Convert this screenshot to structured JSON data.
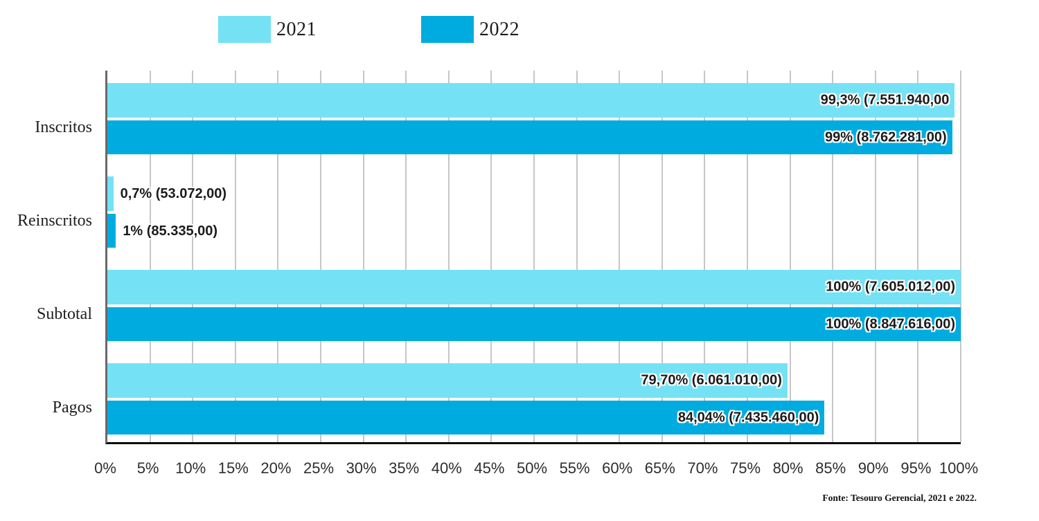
{
  "chart_data": {
    "type": "bar",
    "orientation": "horizontal",
    "categories": [
      "Inscritos",
      "Reinscritos",
      "Subtotal",
      "Pagos"
    ],
    "series": [
      {
        "name": "2021",
        "color": "#74E2F4",
        "values": [
          99.3,
          0.7,
          100,
          79.7
        ],
        "labels": [
          "99,3% (7.551.940,00",
          "0,7% (53.072,00)",
          "100% (7.605.012,00)",
          "79,70% (6.061.010,00)"
        ]
      },
      {
        "name": "2022",
        "color": "#00ACDF",
        "values": [
          99,
          1,
          100,
          84.04
        ],
        "labels": [
          "99% (8.762.281,00)",
          "1% (85.335,00)",
          "100% (8.847.616,00)",
          "84,04% (7.435.460,00)"
        ]
      }
    ],
    "x_ticks": [
      "0%",
      "5%",
      "10%",
      "15%",
      "20%",
      "25%",
      "30%",
      "35%",
      "40%",
      "45%",
      "50%",
      "55%",
      "60%",
      "65%",
      "70%",
      "75%",
      "80%",
      "85%",
      "90%",
      "95%",
      "100%"
    ],
    "xlim": [
      0,
      100
    ],
    "grid": true,
    "legend_position": "top",
    "title": "",
    "xlabel": "",
    "ylabel": ""
  },
  "legend": [
    {
      "label": "2021",
      "color": "#74E2F4"
    },
    {
      "label": "2022",
      "color": "#00ACDF"
    }
  ],
  "footer": {
    "source": "Fonte: Tesouro Gerencial, 2021 e 2022."
  },
  "colors": {
    "series_2021": "#74E2F4",
    "series_2022": "#00ACDF",
    "gridline": "#c6c6c6",
    "y_axis_line": "#696969",
    "x_axis_line": "#0a0a0a",
    "label_text": "#1b1b1b",
    "label_outline": "#ffffff"
  }
}
